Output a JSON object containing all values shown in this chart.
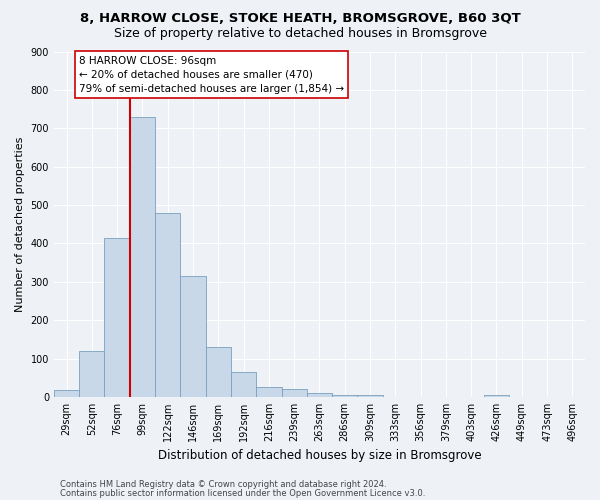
{
  "title1": "8, HARROW CLOSE, STOKE HEATH, BROMSGROVE, B60 3QT",
  "title2": "Size of property relative to detached houses in Bromsgrove",
  "xlabel": "Distribution of detached houses by size in Bromsgrove",
  "ylabel": "Number of detached properties",
  "bin_labels": [
    "29sqm",
    "52sqm",
    "76sqm",
    "99sqm",
    "122sqm",
    "146sqm",
    "169sqm",
    "192sqm",
    "216sqm",
    "239sqm",
    "263sqm",
    "286sqm",
    "309sqm",
    "333sqm",
    "356sqm",
    "379sqm",
    "403sqm",
    "426sqm",
    "449sqm",
    "473sqm",
    "496sqm"
  ],
  "bar_heights": [
    18,
    120,
    415,
    730,
    480,
    315,
    130,
    65,
    25,
    20,
    10,
    5,
    5,
    0,
    0,
    0,
    0,
    5,
    0,
    0,
    0
  ],
  "bar_color": "#c8d8e8",
  "bar_edge_color": "#7aa0be",
  "property_line_color": "#cc0000",
  "annotation_text": "8 HARROW CLOSE: 96sqm\n← 20% of detached houses are smaller (470)\n79% of semi-detached houses are larger (1,854) →",
  "annotation_box_color": "#ffffff",
  "annotation_box_edge": "#cc0000",
  "ylim": [
    0,
    900
  ],
  "yticks": [
    0,
    100,
    200,
    300,
    400,
    500,
    600,
    700,
    800,
    900
  ],
  "footer1": "Contains HM Land Registry data © Crown copyright and database right 2024.",
  "footer2": "Contains public sector information licensed under the Open Government Licence v3.0.",
  "background_color": "#eef2f7",
  "plot_bg_color": "#eef2f7",
  "grid_color": "#ffffff",
  "title1_fontsize": 9.5,
  "title2_fontsize": 9,
  "xlabel_fontsize": 8.5,
  "ylabel_fontsize": 8,
  "tick_fontsize": 7,
  "footer_fontsize": 6,
  "annot_fontsize": 7.5
}
